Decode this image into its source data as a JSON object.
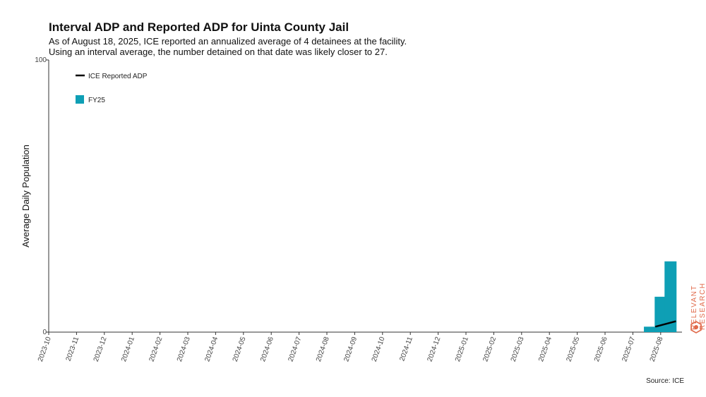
{
  "header": {
    "title": "Interval ADP and Reported ADP for Uinta County Jail",
    "subtitle_line1": "As of August 18, 2025, ICE reported an annualized average of 4 detainees at the facility.",
    "subtitle_line2": "Using an interval average, the number detained on that date was likely closer to 27."
  },
  "footer": {
    "source": "Source: ICE"
  },
  "brand": {
    "line1": "RELEVANT",
    "line2": "RESEARCH"
  },
  "colors": {
    "bar": "#0e9fb5",
    "line": "#000000",
    "brand": "#e06a4a"
  },
  "chart_data": {
    "type": "bar",
    "title": "Interval ADP and Reported ADP for Uinta County Jail",
    "xlabel": "",
    "ylabel": "Average Daily Population",
    "ylim": [
      0,
      100
    ],
    "yticks": [
      "0",
      "100"
    ],
    "grid": false,
    "legend_position": "top-left",
    "categories": [
      "2023-10",
      "2023-11",
      "2023-12",
      "2024-01",
      "2024-02",
      "2024-03",
      "2024-04",
      "2024-05",
      "2024-06",
      "2024-07",
      "2024-08",
      "2024-09",
      "2024-10",
      "2024-11",
      "2024-12",
      "2025-01",
      "2025-02",
      "2025-03",
      "2025-04",
      "2025-05",
      "2025-06",
      "2025-07",
      "2025-08"
    ],
    "series": [
      {
        "name": "FY25",
        "kind": "bar",
        "bars": [
          {
            "date": "2025-07-20",
            "value": 2
          },
          {
            "date": "2025-08-01",
            "value": 13
          },
          {
            "date": "2025-08-12",
            "value": 26
          }
        ]
      },
      {
        "name": "ICE Reported ADP",
        "kind": "line",
        "points": [
          {
            "date": "2025-07-26",
            "value": 2
          },
          {
            "date": "2025-08-18",
            "value": 4
          }
        ]
      }
    ]
  }
}
